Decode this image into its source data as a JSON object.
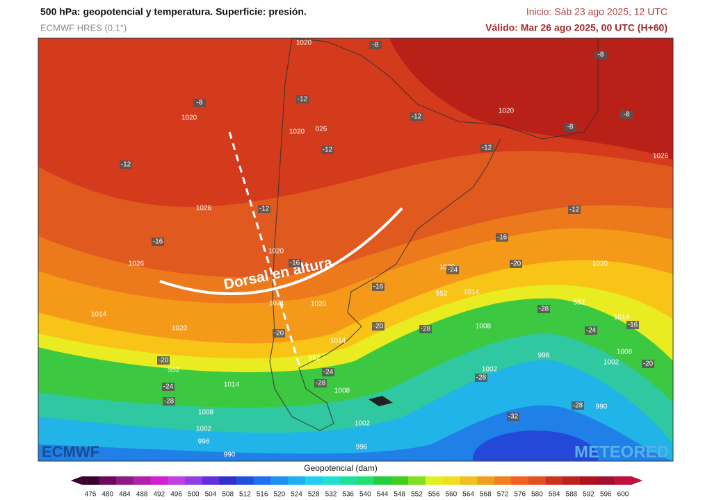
{
  "header": {
    "title": "500 hPa: geopotencial y temperatura. Superficie: presión.",
    "model": "ECMWF HRES (0.1°)",
    "init": "Inicio: Sáb 23 ago 2025, 12 UTC",
    "valid": "Válido: Mar 26 ago 2025, 00 UTC (H+60)"
  },
  "annotation": "Dorsal en altura",
  "logos": {
    "left": "ECMWF",
    "right": "METEORED"
  },
  "map": {
    "isobar_labels": [
      "1020",
      "1020",
      "1020",
      "026",
      "1020",
      "1026",
      "1026",
      "1026",
      "1020",
      "1020",
      "1020",
      "1014",
      "1020",
      "1021",
      "1020",
      "1014",
      "1008",
      "1014",
      "1014",
      "1008",
      "996",
      "1002",
      "1002",
      "1014",
      "1008",
      "1008",
      "1002",
      "1002",
      "996",
      "996",
      "990",
      "990"
    ],
    "temp_labels": [
      "-8",
      "-8",
      "-8",
      "-12",
      "-8",
      "-12",
      "-8",
      "-12",
      "-12",
      "-12",
      "-12",
      "-12",
      "-16",
      "-16",
      "-16",
      "-20",
      "-24",
      "-16",
      "-28",
      "-16",
      "-20",
      "-28",
      "-24",
      "-20",
      "-20",
      "-20",
      "-24",
      "-28",
      "-24",
      "-28",
      "-28",
      "-28",
      "-32"
    ],
    "contour_labels": [
      "552",
      "552",
      "552",
      "552"
    ]
  },
  "colorbar": {
    "label": "Geopotencial (dam)",
    "ticks": [
      476,
      480,
      484,
      488,
      492,
      496,
      500,
      504,
      508,
      512,
      516,
      520,
      524,
      528,
      532,
      536,
      540,
      544,
      548,
      552,
      556,
      560,
      564,
      568,
      572,
      576,
      580,
      584,
      588,
      592,
      596,
      600
    ],
    "colors": [
      "#3a0030",
      "#6a0a5a",
      "#8e1a84",
      "#b020a8",
      "#d020d0",
      "#c040e0",
      "#9040e0",
      "#6030e0",
      "#3030d0",
      "#2050e0",
      "#2070f0",
      "#2090f0",
      "#20b0f0",
      "#20d0f0",
      "#20e0d0",
      "#20e0a0",
      "#20e070",
      "#20d040",
      "#40d020",
      "#80e020",
      "#e0f020",
      "#f0e020",
      "#f0c020",
      "#f0a020",
      "#f08020",
      "#f06020",
      "#e05020",
      "#d03020",
      "#c02020",
      "#b01020",
      "#a01030",
      "#c01040"
    ]
  }
}
